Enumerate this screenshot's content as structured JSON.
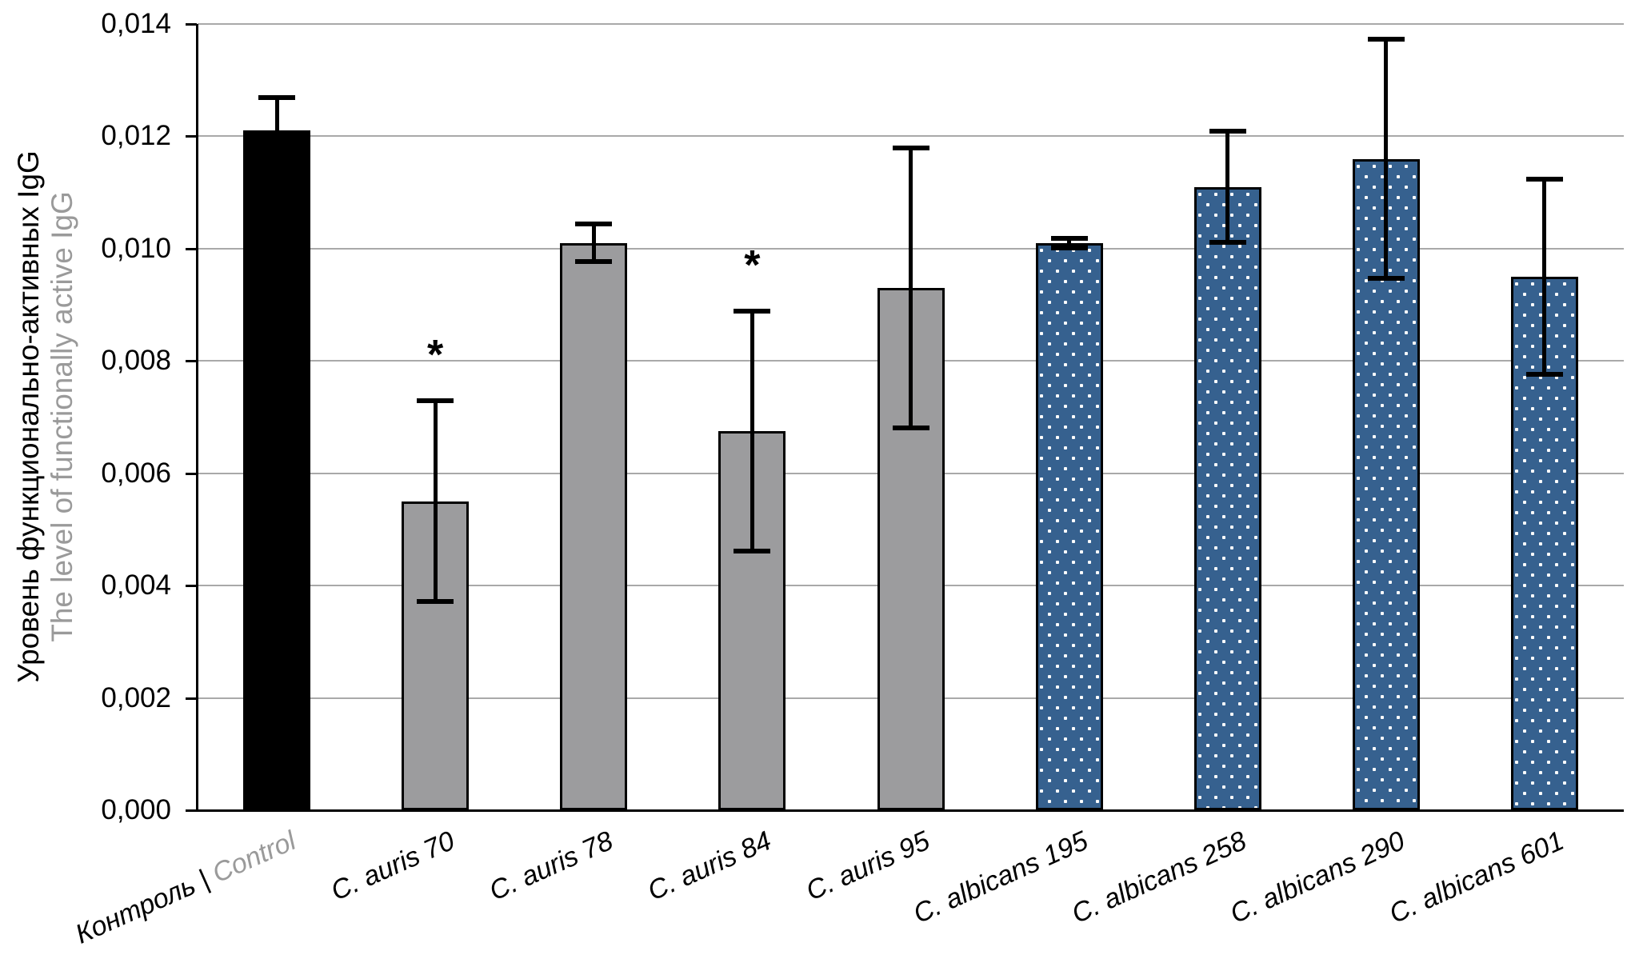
{
  "chart_data": {
    "type": "bar",
    "title": "",
    "grid": "horizontal",
    "legend": "none",
    "y_axis": {
      "label_primary": "Уровень функционально-активных IgG",
      "label_secondary": "The level of functionally active IgG",
      "min": 0,
      "max": 0.014,
      "tick_step": 0.002,
      "decimal_separator": ",",
      "tick_labels": [
        "0,000",
        "0,002",
        "0,004",
        "0,006",
        "0,008",
        "0,010",
        "0,012",
        "0,014"
      ]
    },
    "categories": [
      {
        "label": "Контроль | Control",
        "parts": [
          {
            "text": "Контроль | ",
            "muted": false
          },
          {
            "text": "Control",
            "muted": true
          }
        ]
      },
      {
        "label": "C. auris 70"
      },
      {
        "label": "C. auris 78"
      },
      {
        "label": "C. auris 84"
      },
      {
        "label": "C. auris 95"
      },
      {
        "label": "C. albicans 195"
      },
      {
        "label": "C. albicans 258"
      },
      {
        "label": "C. albicans 290"
      },
      {
        "label": "C. albicans 601"
      }
    ],
    "values": [
      0.0121,
      0.0055,
      0.0101,
      0.00675,
      0.0093,
      0.0101,
      0.0111,
      0.0116,
      0.0095
    ],
    "errors": [
      0.0006,
      0.0018,
      0.00035,
      0.00215,
      0.0025,
      0.0001,
      0.001,
      0.00215,
      0.00175
    ],
    "significant": [
      false,
      true,
      false,
      true,
      false,
      false,
      false,
      false,
      false
    ],
    "significance_marker": "*",
    "bar_styles": [
      "solid-black",
      "solid-gray",
      "solid-gray",
      "solid-gray",
      "solid-gray",
      "dotted-blue",
      "dotted-blue",
      "dotted-blue",
      "dotted-blue"
    ],
    "colors": {
      "bar_black": "#000000",
      "bar_gray": "#9C9C9E",
      "bar_blue": "#36618F",
      "bar_border": "#000000",
      "dot_white": "#FFFFFF",
      "gridline": "#A9A9A9",
      "axis": "#000000",
      "text": "#000000",
      "muted_text": "#9A9A9A"
    }
  }
}
